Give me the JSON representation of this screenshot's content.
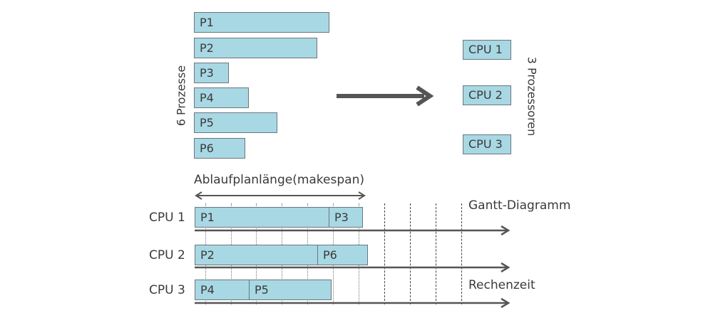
{
  "left_group_label": "6 Prozesse",
  "right_group_label": "3 Prozessoren",
  "processes": [
    "P1",
    "P2",
    "P3",
    "P4",
    "P5",
    "P6"
  ],
  "processors": [
    "CPU 1",
    "CPU 2",
    "CPU 3"
  ],
  "makespan_label": "Ablaufplanlänge(makespan)",
  "gantt_label": "Gantt-Diagramm",
  "time_label": "Rechenzeit",
  "gantt_rows": [
    {
      "cpu": "CPU 1",
      "tasks": [
        "P1",
        "P3"
      ]
    },
    {
      "cpu": "CPU 2",
      "tasks": [
        "P2",
        "P6"
      ]
    },
    {
      "cpu": "CPU 3",
      "tasks": [
        "P4",
        "P5"
      ]
    }
  ],
  "colors": {
    "box_fill": "#a8d8e4",
    "box_border": "#6b7680",
    "arrow": "#555555",
    "text": "#3a3a3a"
  }
}
